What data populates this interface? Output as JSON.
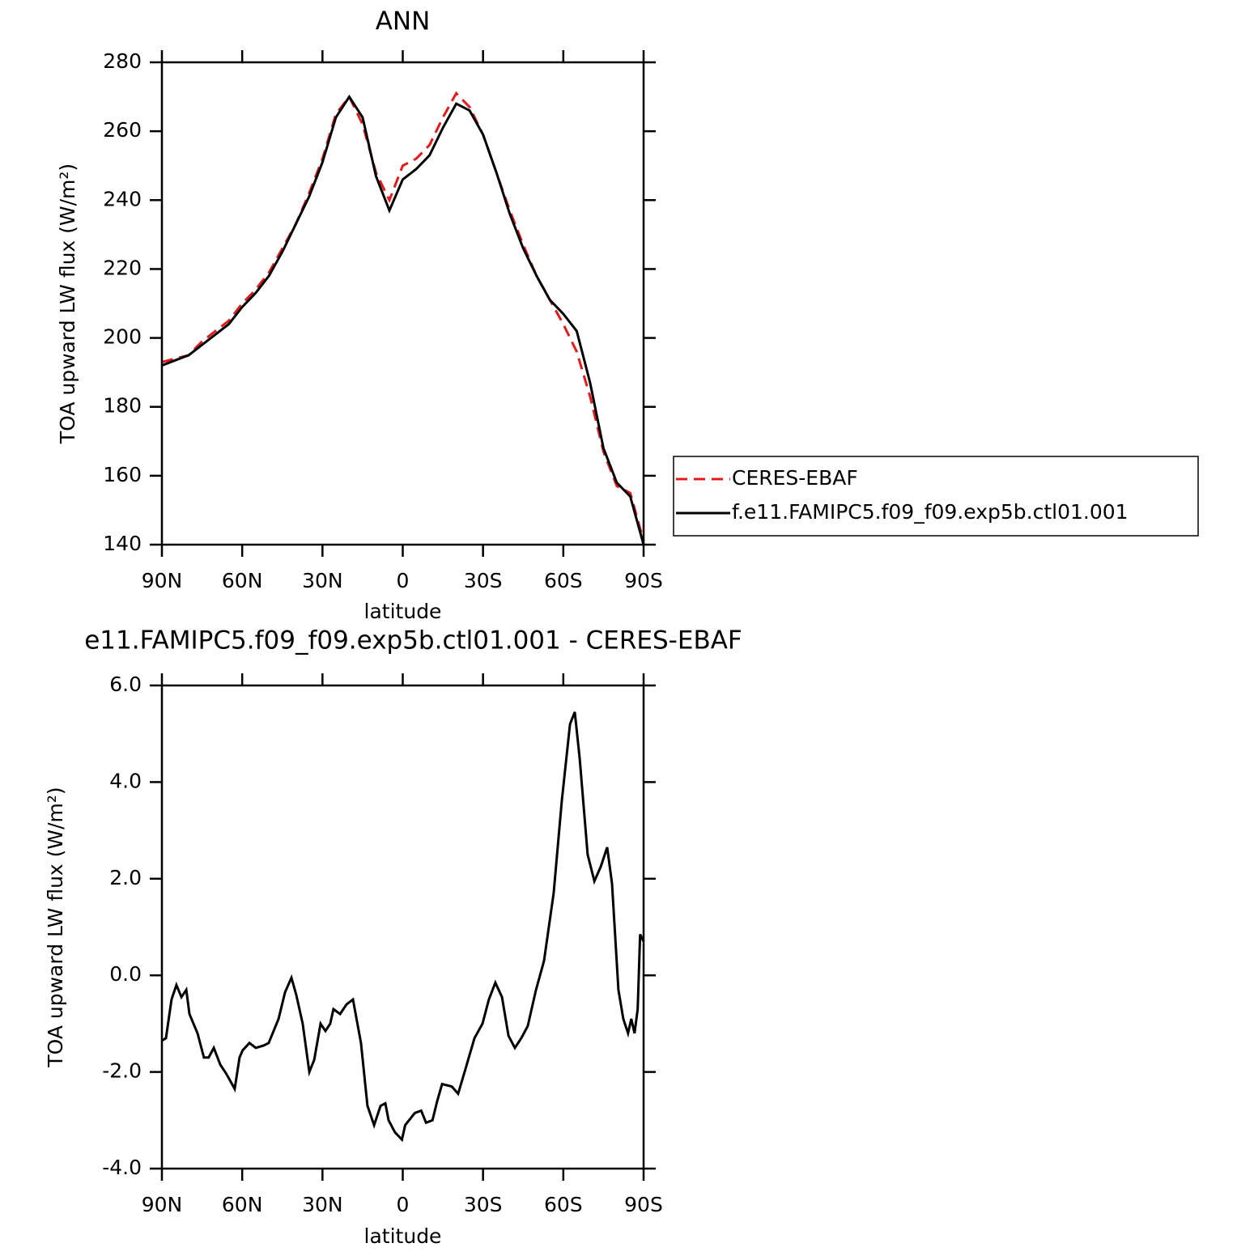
{
  "chart_data": [
    {
      "type": "line",
      "title": "ANN",
      "xlabel": "latitude",
      "ylabel": "TOA upward LW flux (W/m²)",
      "x": [
        90,
        85,
        80,
        75,
        70,
        65,
        60,
        55,
        50,
        45,
        40,
        35,
        30,
        25,
        20,
        15,
        10,
        5,
        0,
        -5,
        -10,
        -15,
        -20,
        -25,
        -30,
        -35,
        -40,
        -45,
        -50,
        -55,
        -60,
        -65,
        -70,
        -75,
        -80,
        -85,
        -90
      ],
      "series": [
        {
          "name": "CERES-EBAF",
          "color": "#e41a1c",
          "style": "dashed",
          "values": [
            193,
            194,
            195,
            199,
            202,
            205,
            210,
            214,
            219,
            226,
            233,
            242,
            252,
            265,
            270,
            262,
            248,
            240,
            250,
            252,
            256,
            264,
            271,
            267,
            259,
            248,
            237,
            227,
            218,
            211,
            204,
            196,
            183,
            167,
            157,
            155,
            141
          ]
        },
        {
          "name": "f.e11.FAMIPC5.f09_f09.exp5b.ctl01.001",
          "color": "#000000",
          "style": "solid",
          "values": [
            192,
            193.5,
            195,
            198,
            201,
            204,
            209,
            213,
            218,
            225,
            233,
            241,
            251,
            264,
            270,
            264,
            247,
            237,
            246,
            249,
            253,
            261,
            268,
            266,
            259,
            248,
            236,
            226,
            218,
            211,
            207,
            202,
            187,
            168,
            158,
            154,
            140
          ]
        }
      ],
      "xlim": [
        90,
        -90
      ],
      "xticks": [
        {
          "value": 90,
          "label": "90N"
        },
        {
          "value": 60,
          "label": "60N"
        },
        {
          "value": 30,
          "label": "30N"
        },
        0,
        {
          "value": -30,
          "label": "30S"
        },
        {
          "value": -60,
          "label": "60S"
        },
        {
          "value": -90,
          "label": "90S"
        }
      ],
      "ylim": [
        140,
        280
      ],
      "yticks": [
        140,
        160,
        180,
        200,
        220,
        240,
        260,
        280
      ],
      "legend": "right"
    },
    {
      "type": "line",
      "title": "e11.FAMIPC5.f09_f09.exp5b.ctl01.001 - CERES-EBAF",
      "xlabel": "latitude",
      "ylabel": "TOA upward LW flux (W/m²)",
      "x": [
        90,
        88.5,
        86.4,
        84.6,
        82.7,
        80.9,
        79.7,
        76.7,
        74.3,
        72.5,
        70.6,
        68.2,
        65.8,
        62.8,
        61,
        59.8,
        57.3,
        54.9,
        51.9,
        50.1,
        46.4,
        44,
        41.6,
        39.8,
        37.4,
        34.9,
        33.1,
        30.7,
        28.9,
        27.1,
        25.9,
        23.4,
        21,
        18.6,
        15.6,
        13.2,
        10.7,
        8.3,
        6.5,
        5.3,
        2.9,
        0.3,
        -0.9,
        -4.5,
        -6.9,
        -8.7,
        -11.1,
        -12.9,
        -14.7,
        -18.3,
        -20.7,
        -23.1,
        -26.8,
        -29.8,
        -32.2,
        -34.6,
        -37.1,
        -39.5,
        -41.9,
        -44.3,
        -46.7,
        -49.8,
        -52.8,
        -56.4,
        -59.4,
        -62.5,
        -64.3,
        -66.1,
        -69.1,
        -71.6,
        -74,
        -76.4,
        -78.2,
        -80.6,
        -82.4,
        -84.2,
        -85.4,
        -86.6,
        -87.8,
        -88.7,
        -90
      ],
      "series": [
        {
          "color": "#000000",
          "style": "solid",
          "values": [
            -1.35,
            -1.3,
            -0.5,
            -0.2,
            -0.45,
            -0.3,
            -0.8,
            -1.2,
            -1.7,
            -1.7,
            -1.5,
            -1.85,
            -2.05,
            -2.35,
            -1.7,
            -1.55,
            -1.4,
            -1.5,
            -1.45,
            -1.4,
            -0.9,
            -0.35,
            -0.05,
            -0.4,
            -1.0,
            -2.0,
            -1.75,
            -1.0,
            -1.15,
            -1.0,
            -0.7,
            -0.8,
            -0.6,
            -0.5,
            -1.4,
            -2.7,
            -3.1,
            -2.7,
            -2.65,
            -3.0,
            -3.25,
            -3.4,
            -3.1,
            -2.85,
            -2.8,
            -3.05,
            -3.0,
            -2.6,
            -2.25,
            -2.3,
            -2.45,
            -2.0,
            -1.3,
            -1.0,
            -0.5,
            -0.15,
            -0.45,
            -1.25,
            -1.5,
            -1.3,
            -1.05,
            -0.3,
            0.3,
            1.7,
            3.6,
            5.2,
            5.45,
            4.5,
            2.5,
            1.95,
            2.25,
            2.65,
            1.9,
            -0.3,
            -0.9,
            -1.2,
            -0.9,
            -1.2,
            -0.7,
            0.85,
            0.7
          ]
        }
      ],
      "xlim": [
        90,
        -90
      ],
      "xticks": [
        {
          "value": 90,
          "label": "90N"
        },
        {
          "value": 60,
          "label": "60N"
        },
        {
          "value": 30,
          "label": "30N"
        },
        0,
        {
          "value": -30,
          "label": "30S"
        },
        {
          "value": -60,
          "label": "60S"
        },
        {
          "value": -90,
          "label": "90S"
        }
      ],
      "ylim": [
        -4,
        6
      ],
      "yticks": [
        {
          "value": -4,
          "label": "-4.0"
        },
        {
          "value": -2,
          "label": "-2.0"
        },
        {
          "value": 0,
          "label": "0.0"
        },
        {
          "value": 2,
          "label": "2.0"
        },
        {
          "value": 4,
          "label": "4.0"
        },
        {
          "value": 6,
          "label": "6.0"
        }
      ]
    }
  ]
}
